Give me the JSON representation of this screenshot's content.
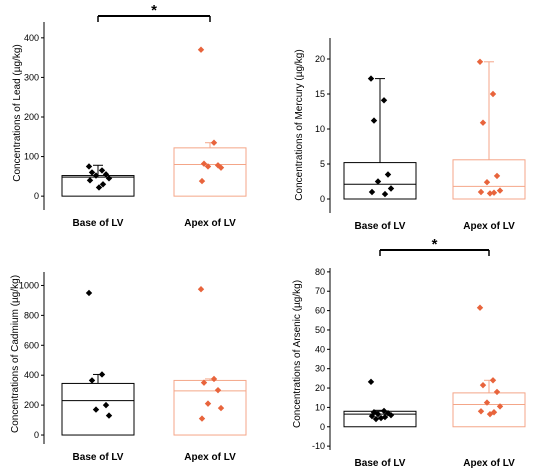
{
  "colors": {
    "base": "#000000",
    "apex": "#e8643c",
    "apex_box": "#f4a688"
  },
  "chart_data": [
    {
      "type": "box-scatter",
      "ylabel": "Concentrations of Lead (µg/kg)",
      "yticks": [
        "0",
        "100",
        "200",
        "300",
        "400"
      ],
      "ylim": [
        -35,
        440
      ],
      "categories": [
        "Base of LV",
        "Apex of LV"
      ],
      "significance": "*",
      "groups": [
        {
          "box_top": 52,
          "median": 48,
          "box_bottom": 0,
          "whisker_top": 78,
          "points": [
            75,
            65,
            60,
            55,
            52,
            45,
            40,
            30,
            22
          ]
        },
        {
          "box_top": 122,
          "median": 80,
          "box_bottom": 0,
          "whisker_top": 135,
          "points": [
            370,
            135,
            82,
            78,
            75,
            72,
            38
          ]
        }
      ]
    },
    {
      "type": "box-scatter",
      "ylabel": "Concentrations of Mercury (µg/kg)",
      "yticks": [
        "0",
        "5",
        "10",
        "15",
        "20"
      ],
      "ylim": [
        -2,
        23
      ],
      "categories": [
        "Base of LV",
        "Apex of LV"
      ],
      "significance": "",
      "groups": [
        {
          "box_top": 5.2,
          "median": 2.1,
          "box_bottom": 0,
          "whisker_top": 17.2,
          "points": [
            17.2,
            14.1,
            11.2,
            3.5,
            2.5,
            1.5,
            1.0,
            0.7
          ]
        },
        {
          "box_top": 5.6,
          "median": 1.8,
          "box_bottom": 0,
          "whisker_top": 19.6,
          "points": [
            19.6,
            15.0,
            10.9,
            3.3,
            2.4,
            1.2,
            1.0,
            0.9,
            0.8
          ]
        }
      ]
    },
    {
      "type": "box-scatter",
      "ylabel": "Concentrations of Cadmium (µg/kg)",
      "yticks": [
        "0",
        "200",
        "400",
        "600",
        "800",
        "1000"
      ],
      "ylim": [
        -60,
        1090
      ],
      "categories": [
        "Base of LV",
        "Apex of LV"
      ],
      "significance": "",
      "groups": [
        {
          "box_top": 345,
          "median": 230,
          "box_bottom": 0,
          "whisker_top": 405,
          "points": [
            950,
            405,
            365,
            200,
            170,
            130
          ]
        },
        {
          "box_top": 365,
          "median": 295,
          "box_bottom": 0,
          "whisker_top": 375,
          "points": [
            975,
            375,
            350,
            300,
            210,
            180,
            110
          ]
        }
      ]
    },
    {
      "type": "box-scatter",
      "ylabel": "Concentrations of Arsenic (µg/kg)",
      "yticks": [
        "-10",
        "0",
        "10",
        "20",
        "30",
        "40",
        "50",
        "60",
        "70",
        "80"
      ],
      "ylim": [
        -12,
        82
      ],
      "categories": [
        "Base of LV",
        "Apex of LV"
      ],
      "significance": "*",
      "groups": [
        {
          "box_top": 8.0,
          "median": 6.5,
          "box_bottom": 0,
          "whisker_top": 8.5,
          "points": [
            23.2,
            8.2,
            7.5,
            7.0,
            6.5,
            6.0,
            5.5,
            5.0,
            4.5,
            4.0
          ]
        },
        {
          "box_top": 17.5,
          "median": 11.5,
          "box_bottom": 0,
          "whisker_top": 24.0,
          "points": [
            61.5,
            24.0,
            21.5,
            18.0,
            12.5,
            10.5,
            8.0,
            7.5,
            6.5
          ]
        }
      ]
    }
  ]
}
